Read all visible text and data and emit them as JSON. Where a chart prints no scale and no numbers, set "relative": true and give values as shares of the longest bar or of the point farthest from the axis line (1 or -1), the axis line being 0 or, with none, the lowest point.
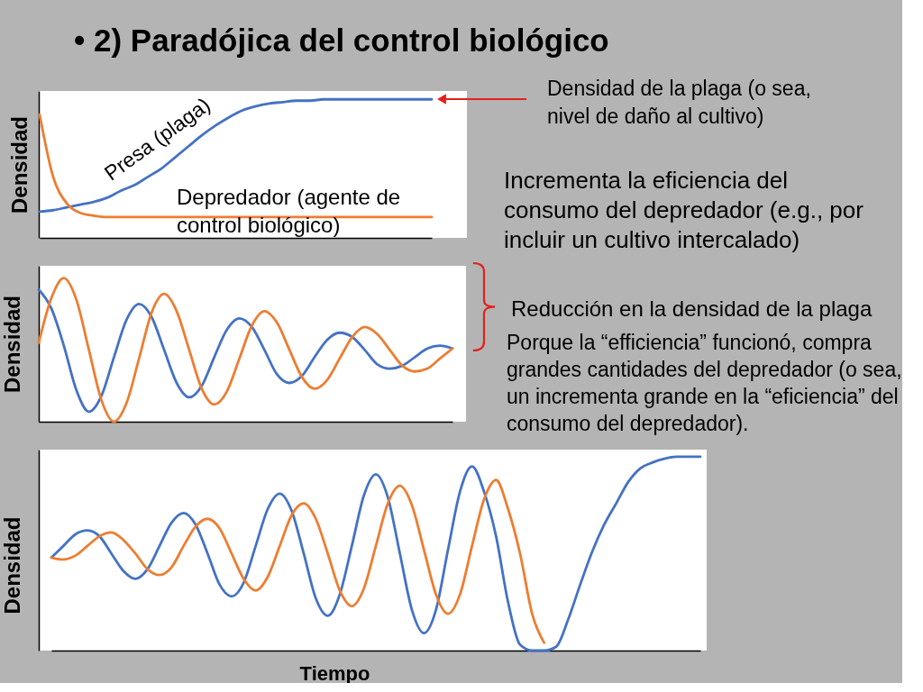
{
  "chart_data": [
    {
      "type": "line",
      "title": "• 2) Paradójica del control biológico",
      "ylabel": "Densidad",
      "relative": true,
      "tick_labels": false,
      "categories": [
        null,
        null,
        null,
        null,
        null,
        null,
        null,
        null,
        null,
        null,
        null,
        null,
        null,
        null,
        null,
        null,
        null,
        null,
        null,
        null,
        null,
        null,
        null,
        null,
        null,
        null,
        null,
        null,
        null,
        null
      ],
      "series": [
        {
          "name": "Presa (plaga)",
          "color": "#4472c4",
          "values": [
            0.19,
            0.2,
            0.22,
            0.24,
            0.26,
            0.29,
            0.34,
            0.38,
            0.44,
            0.5,
            0.58,
            0.66,
            0.74,
            0.81,
            0.87,
            0.92,
            0.95,
            0.97,
            0.98,
            0.99,
            0.99,
            1,
            1,
            1,
            1,
            1,
            1,
            1,
            1,
            1
          ]
        },
        {
          "name": "Depredador (agente de control biológico)",
          "color": "#ed7d31",
          "values": [
            0.89,
            0.44,
            0.25,
            0.18,
            0.16,
            0.15,
            0.15,
            0.15,
            0.15,
            0.15,
            0.15,
            0.15,
            0.15,
            0.15,
            0.15,
            0.15,
            0.15,
            0.15,
            0.15,
            0.15,
            0.15,
            0.15,
            0.15,
            0.15,
            0.15,
            0.15,
            0.15,
            0.15,
            0.15,
            0.15
          ]
        }
      ],
      "annotations": [
        "Densidad de la plaga (o sea, nivel de daño al cultivo)",
        "Incrementa la eficiencia del consumo del depredador (e.g., por incluir un cultivo intercalado)"
      ]
    },
    {
      "type": "line",
      "ylabel": "Densidad",
      "relative": true,
      "tick_labels": false,
      "categories": [
        null,
        null,
        null,
        null,
        null,
        null,
        null,
        null,
        null,
        null,
        null,
        null,
        null,
        null,
        null,
        null,
        null,
        null,
        null,
        null,
        null,
        null,
        null,
        null,
        null,
        null,
        null,
        null,
        null,
        null,
        null,
        null,
        null,
        null
      ],
      "series": [
        {
          "color": "#4472c4",
          "values": [
            0.92,
            0.79,
            0.53,
            0.22,
            0.07,
            0.18,
            0.45,
            0.71,
            0.82,
            0.73,
            0.5,
            0.27,
            0.17,
            0.25,
            0.45,
            0.64,
            0.72,
            0.66,
            0.5,
            0.33,
            0.27,
            0.32,
            0.45,
            0.57,
            0.62,
            0.59,
            0.5,
            0.4,
            0.37,
            0.39,
            0.45,
            0.51,
            0.53,
            0.51
          ]
        },
        {
          "color": "#ed7d31",
          "values": [
            0.55,
            0.86,
            1.0,
            0.85,
            0.5,
            0.15,
            0,
            0.13,
            0.44,
            0.76,
            0.89,
            0.77,
            0.5,
            0.23,
            0.12,
            0.21,
            0.44,
            0.67,
            0.77,
            0.69,
            0.5,
            0.31,
            0.23,
            0.29,
            0.44,
            0.59,
            0.66,
            0.61,
            0.5,
            0.39,
            0.35,
            0.37,
            0.44,
            0.51
          ]
        }
      ],
      "annotations": [
        "Reducción en la densidad de la plaga",
        "Porque la “efficiencia” funcionó, compra grandes cantidades del depredador (o sea, un incrementa grande en la “eficiencia” del consumo del depredador)."
      ]
    },
    {
      "type": "line",
      "xlabel": "Tiempo",
      "ylabel": "Densidad",
      "relative": true,
      "tick_labels": false,
      "categories": [
        null,
        null,
        null,
        null,
        null,
        null,
        null,
        null,
        null,
        null,
        null,
        null,
        null,
        null,
        null,
        null,
        null,
        null,
        null,
        null,
        null,
        null,
        null,
        null,
        null,
        null,
        null,
        null,
        null,
        null,
        null,
        null,
        null,
        null,
        null,
        null,
        null,
        null,
        null,
        null,
        null,
        null,
        null,
        null,
        null,
        null,
        null,
        null,
        null,
        null,
        null,
        null,
        null,
        null,
        null
      ],
      "series": [
        {
          "color": "#4472c4",
          "values": [
            0.48,
            0.54,
            0.6,
            0.62,
            0.59,
            0.5,
            0.41,
            0.37,
            0.42,
            0.54,
            0.66,
            0.71,
            0.65,
            0.5,
            0.34,
            0.28,
            0.35,
            0.54,
            0.73,
            0.81,
            0.72,
            0.5,
            0.27,
            0.18,
            0.29,
            0.54,
            0.8,
            0.91,
            0.79,
            0.5,
            0.21,
            0.09,
            0.21,
            0.52,
            0.82,
            0.95,
            0.82,
            0.59,
            0.25,
            0.03,
            0,
            0,
            0.02,
            0.16,
            0.34,
            0.51,
            0.65,
            0.76,
            0.87,
            0.94,
            0.97,
            0.99,
            1,
            1,
            1
          ]
        },
        {
          "color": "#ed7d31",
          "values": [
            0.48,
            0.47,
            0.49,
            0.54,
            0.59,
            0.61,
            0.57,
            0.5,
            0.42,
            0.39,
            0.43,
            0.54,
            0.64,
            0.68,
            0.63,
            0.5,
            0.37,
            0.31,
            0.38,
            0.54,
            0.7,
            0.76,
            0.68,
            0.5,
            0.31,
            0.23,
            0.32,
            0.54,
            0.76,
            0.85,
            0.75,
            0.52,
            0.29,
            0.19,
            0.29,
            0.54,
            0.78,
            0.88,
            0.73,
            0.5,
            0.19,
            0.04,
            null,
            null,
            null,
            null,
            null,
            null,
            null,
            null,
            null,
            null,
            null,
            null,
            null
          ]
        }
      ]
    }
  ]
}
